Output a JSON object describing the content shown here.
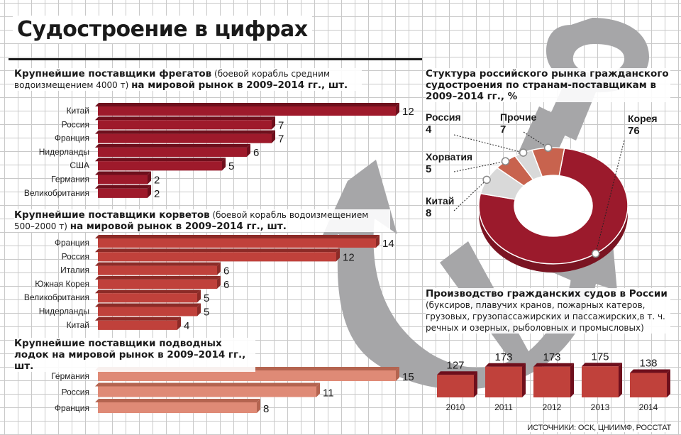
{
  "title": "Судостроение в цифрах",
  "colors": {
    "frigate": "#9e1a2b",
    "frigate_side": "#6e0f1c",
    "corvette": "#c0413b",
    "corvette_side": "#8c2b27",
    "submarine": "#df8a76",
    "submarine_side": "#b46450",
    "donut_main": "#9b1a2c",
    "donut_light": "#d9d9d9",
    "donut_mid": "#c8634e",
    "anchor": "#a6a6a8"
  },
  "sections": {
    "frigates": {
      "title_bold": "Крупнейшие поставщики фрегатов",
      "title_rest": " (боевой корабль средним водоизмещением 4000 т) ",
      "title_tail": "на мировой рынок в 2009–2014 гг., шт."
    },
    "corvettes": {
      "title_bold": "Крупнейшие поставщики корветов",
      "title_rest": " (боевой корабль водоизмещением 500–2000 т) ",
      "title_tail": "на мировой рынок в 2009–2014 гг., шт."
    },
    "submarines": {
      "title_bold": "Крупнейшие поставщики подводных лодок на мировой рынок в 2009–2014 гг., шт."
    },
    "donut": {
      "title": "Стуктура российского рынка гражданского судостроения по странам-поставщикам в 2009–2014 гг., %"
    },
    "production": {
      "title_bold": "Производство гражданских судов в России",
      "subtitle": "(буксиров, плавучих кранов, пожарных катеров, грузовых, грузопассажирских и пассажирских,в т. ч. речных и озерных, рыболовных и промысловых)"
    }
  },
  "source": "ИСТОЧНИКИ: ОСК, ЦНИИМФ, РОССТАТ",
  "chart_data": [
    {
      "type": "bar",
      "name": "frigates",
      "categories": [
        "Китай",
        "Россия",
        "Франция",
        "Нидерланды",
        "США",
        "Германия",
        "Великобритания"
      ],
      "values": [
        12,
        7,
        7,
        6,
        5,
        2,
        2
      ]
    },
    {
      "type": "bar",
      "name": "corvettes",
      "categories": [
        "Франция",
        "Россия",
        "Италия",
        "Южная Корея",
        "Великобритания",
        "Нидерланды",
        "Китай"
      ],
      "values": [
        14,
        12,
        6,
        6,
        5,
        5,
        4
      ]
    },
    {
      "type": "bar",
      "name": "submarines",
      "categories": [
        "Германия",
        "Россия",
        "Франция"
      ],
      "values": [
        15,
        11,
        8
      ]
    },
    {
      "type": "pie",
      "name": "donut",
      "labels": [
        "Корея",
        "Китай",
        "Хорватия",
        "Россия",
        "Прочие"
      ],
      "values": [
        76,
        8,
        5,
        4,
        7
      ]
    },
    {
      "type": "bar",
      "name": "production",
      "categories": [
        "2010",
        "2011",
        "2012",
        "2013",
        "2014"
      ],
      "values": [
        127,
        173,
        173,
        175,
        138
      ]
    }
  ]
}
